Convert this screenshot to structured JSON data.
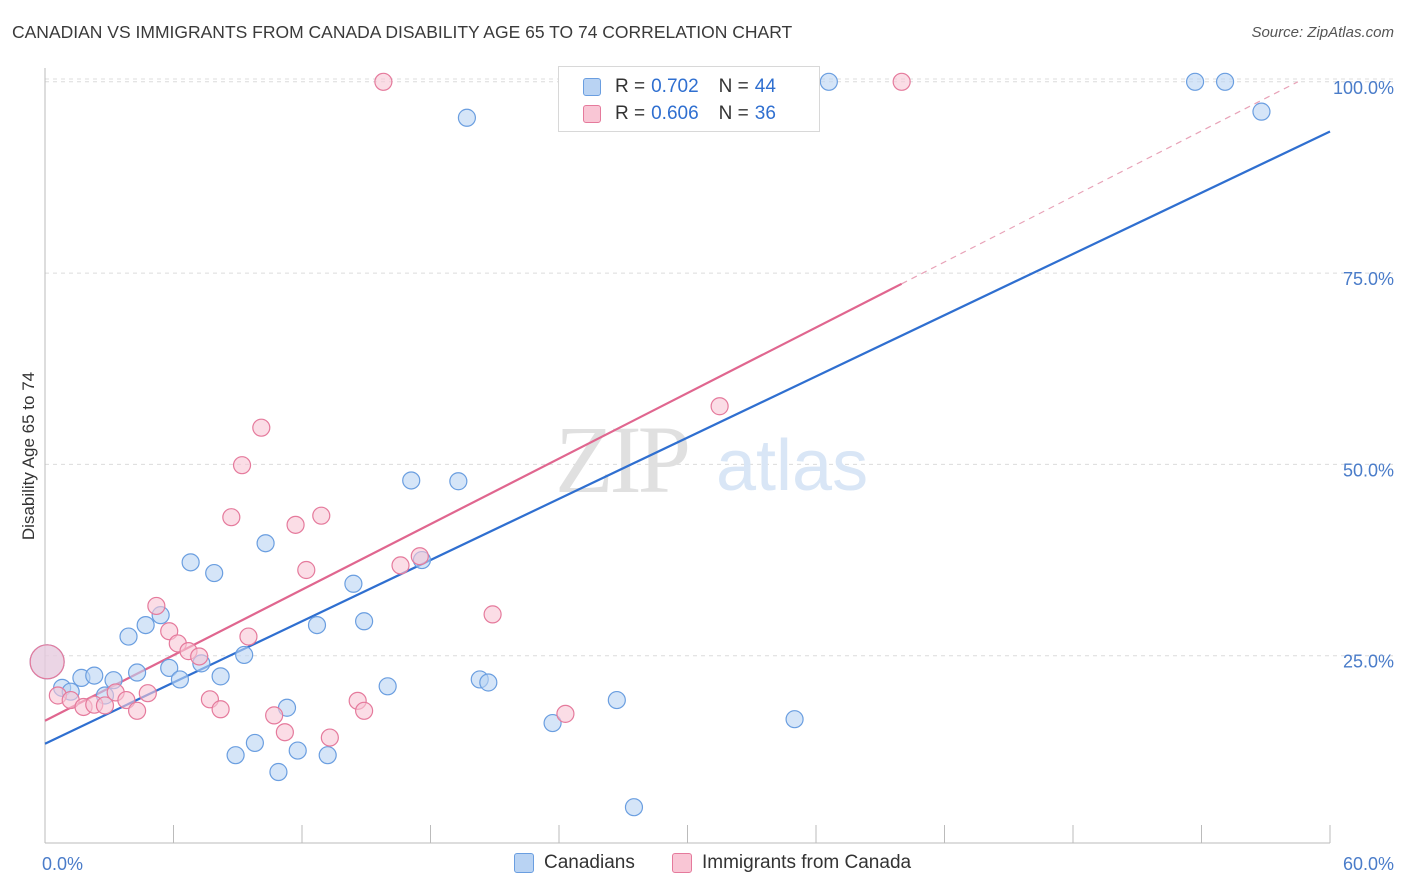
{
  "title": "CANADIAN VS IMMIGRANTS FROM CANADA DISABILITY AGE 65 TO 74 CORRELATION CHART",
  "source": "Source: ZipAtlas.com",
  "watermark": {
    "zip": "ZIP",
    "atlas": "atlas"
  },
  "legend": {
    "rows": [
      {
        "r_label": "R =",
        "r_value": "0.702",
        "n_label": "N =",
        "n_value": "44",
        "color": "#a8c8f0"
      },
      {
        "r_label": "R =",
        "r_value": "0.606",
        "n_label": "N =",
        "n_value": "36",
        "color": "#f7b8cb"
      }
    ]
  },
  "chart_data": {
    "type": "scatter",
    "title": "CANADIAN VS IMMIGRANTS FROM CANADA DISABILITY AGE 65 TO 74 CORRELATION CHART",
    "xlabel": "",
    "ylabel": "Disability Age 65 to 74",
    "xlim": [
      0,
      60
    ],
    "ylim": [
      0,
      102
    ],
    "x_tick_labels": [
      "0.0%",
      "60.0%"
    ],
    "y_ticks": [
      25,
      50,
      75,
      100
    ],
    "y_tick_labels": [
      "25.0%",
      "50.0%",
      "75.0%",
      "100.0%"
    ],
    "grid": true,
    "legend_position": "top-center",
    "series": [
      {
        "name": "Canadians",
        "color": "#6a9ee0",
        "fill": "#b9d3f3",
        "trend": {
          "x": [
            0,
            60
          ],
          "y": [
            13.5,
            93.5
          ],
          "style": "solid"
        },
        "points": [
          [
            0.1,
            24.2
          ],
          [
            0.8,
            20.8
          ],
          [
            1.2,
            20.3
          ],
          [
            1.7,
            22.1
          ],
          [
            2.3,
            22.4
          ],
          [
            2.8,
            19.8
          ],
          [
            3.2,
            21.8
          ],
          [
            3.9,
            27.5
          ],
          [
            4.3,
            22.8
          ],
          [
            4.7,
            29.0
          ],
          [
            5.4,
            30.3
          ],
          [
            5.8,
            23.4
          ],
          [
            6.3,
            21.9
          ],
          [
            6.8,
            37.2
          ],
          [
            7.3,
            24.0
          ],
          [
            7.9,
            35.8
          ],
          [
            8.2,
            22.3
          ],
          [
            8.9,
            12.0
          ],
          [
            9.3,
            25.1
          ],
          [
            9.8,
            13.6
          ],
          [
            10.3,
            39.7
          ],
          [
            10.9,
            9.8
          ],
          [
            11.3,
            18.2
          ],
          [
            11.8,
            12.6
          ],
          [
            12.7,
            29.0
          ],
          [
            13.2,
            12.0
          ],
          [
            14.4,
            34.4
          ],
          [
            14.9,
            29.5
          ],
          [
            16.0,
            21.0
          ],
          [
            17.1,
            47.9
          ],
          [
            17.6,
            37.5
          ],
          [
            19.3,
            47.8
          ],
          [
            19.7,
            95.3
          ],
          [
            20.3,
            21.9
          ],
          [
            20.7,
            21.5
          ],
          [
            23.7,
            16.2
          ],
          [
            26.7,
            19.2
          ],
          [
            27.5,
            5.2
          ],
          [
            35.0,
            16.7
          ],
          [
            35.5,
            100.0
          ],
          [
            36.6,
            100.0
          ],
          [
            53.7,
            100.0
          ],
          [
            55.1,
            100.0
          ],
          [
            56.8,
            96.1
          ]
        ]
      },
      {
        "name": "Immigrants from Canada",
        "color": "#e57a9c",
        "fill": "#f9c6d5",
        "trend": {
          "x": [
            0,
            40
          ],
          "y": [
            16.5,
            73.6
          ],
          "style": "solid",
          "extension": {
            "x": [
              40,
              58.5
            ],
            "y": [
              73.6,
              100.0
            ],
            "style": "dashed"
          }
        },
        "points": [
          [
            0.1,
            24.2
          ],
          [
            0.6,
            19.8
          ],
          [
            1.2,
            19.2
          ],
          [
            1.8,
            18.3
          ],
          [
            2.3,
            18.6
          ],
          [
            2.8,
            18.5
          ],
          [
            3.3,
            20.2
          ],
          [
            3.8,
            19.2
          ],
          [
            4.3,
            17.8
          ],
          [
            4.8,
            20.1
          ],
          [
            5.2,
            31.5
          ],
          [
            5.8,
            28.2
          ],
          [
            6.2,
            26.6
          ],
          [
            6.7,
            25.6
          ],
          [
            7.2,
            24.9
          ],
          [
            7.7,
            19.3
          ],
          [
            8.2,
            18.0
          ],
          [
            8.7,
            43.1
          ],
          [
            9.2,
            49.9
          ],
          [
            9.5,
            27.5
          ],
          [
            10.1,
            54.8
          ],
          [
            10.7,
            17.2
          ],
          [
            11.2,
            15.0
          ],
          [
            11.7,
            42.1
          ],
          [
            12.2,
            36.2
          ],
          [
            12.9,
            43.3
          ],
          [
            13.3,
            14.3
          ],
          [
            14.6,
            19.1
          ],
          [
            14.9,
            17.8
          ],
          [
            16.6,
            36.8
          ],
          [
            17.5,
            38.0
          ],
          [
            20.9,
            30.4
          ],
          [
            24.3,
            17.4
          ],
          [
            31.5,
            57.6
          ],
          [
            15.8,
            100.0
          ],
          [
            40.0,
            100.0
          ]
        ]
      }
    ]
  },
  "bottom_legend": [
    {
      "label": "Canadians",
      "color": "#b9d3f3",
      "stroke": "#6a9ee0"
    },
    {
      "label": "Immigrants from Canada",
      "color": "#f9c6d5",
      "stroke": "#e57a9c"
    }
  ]
}
